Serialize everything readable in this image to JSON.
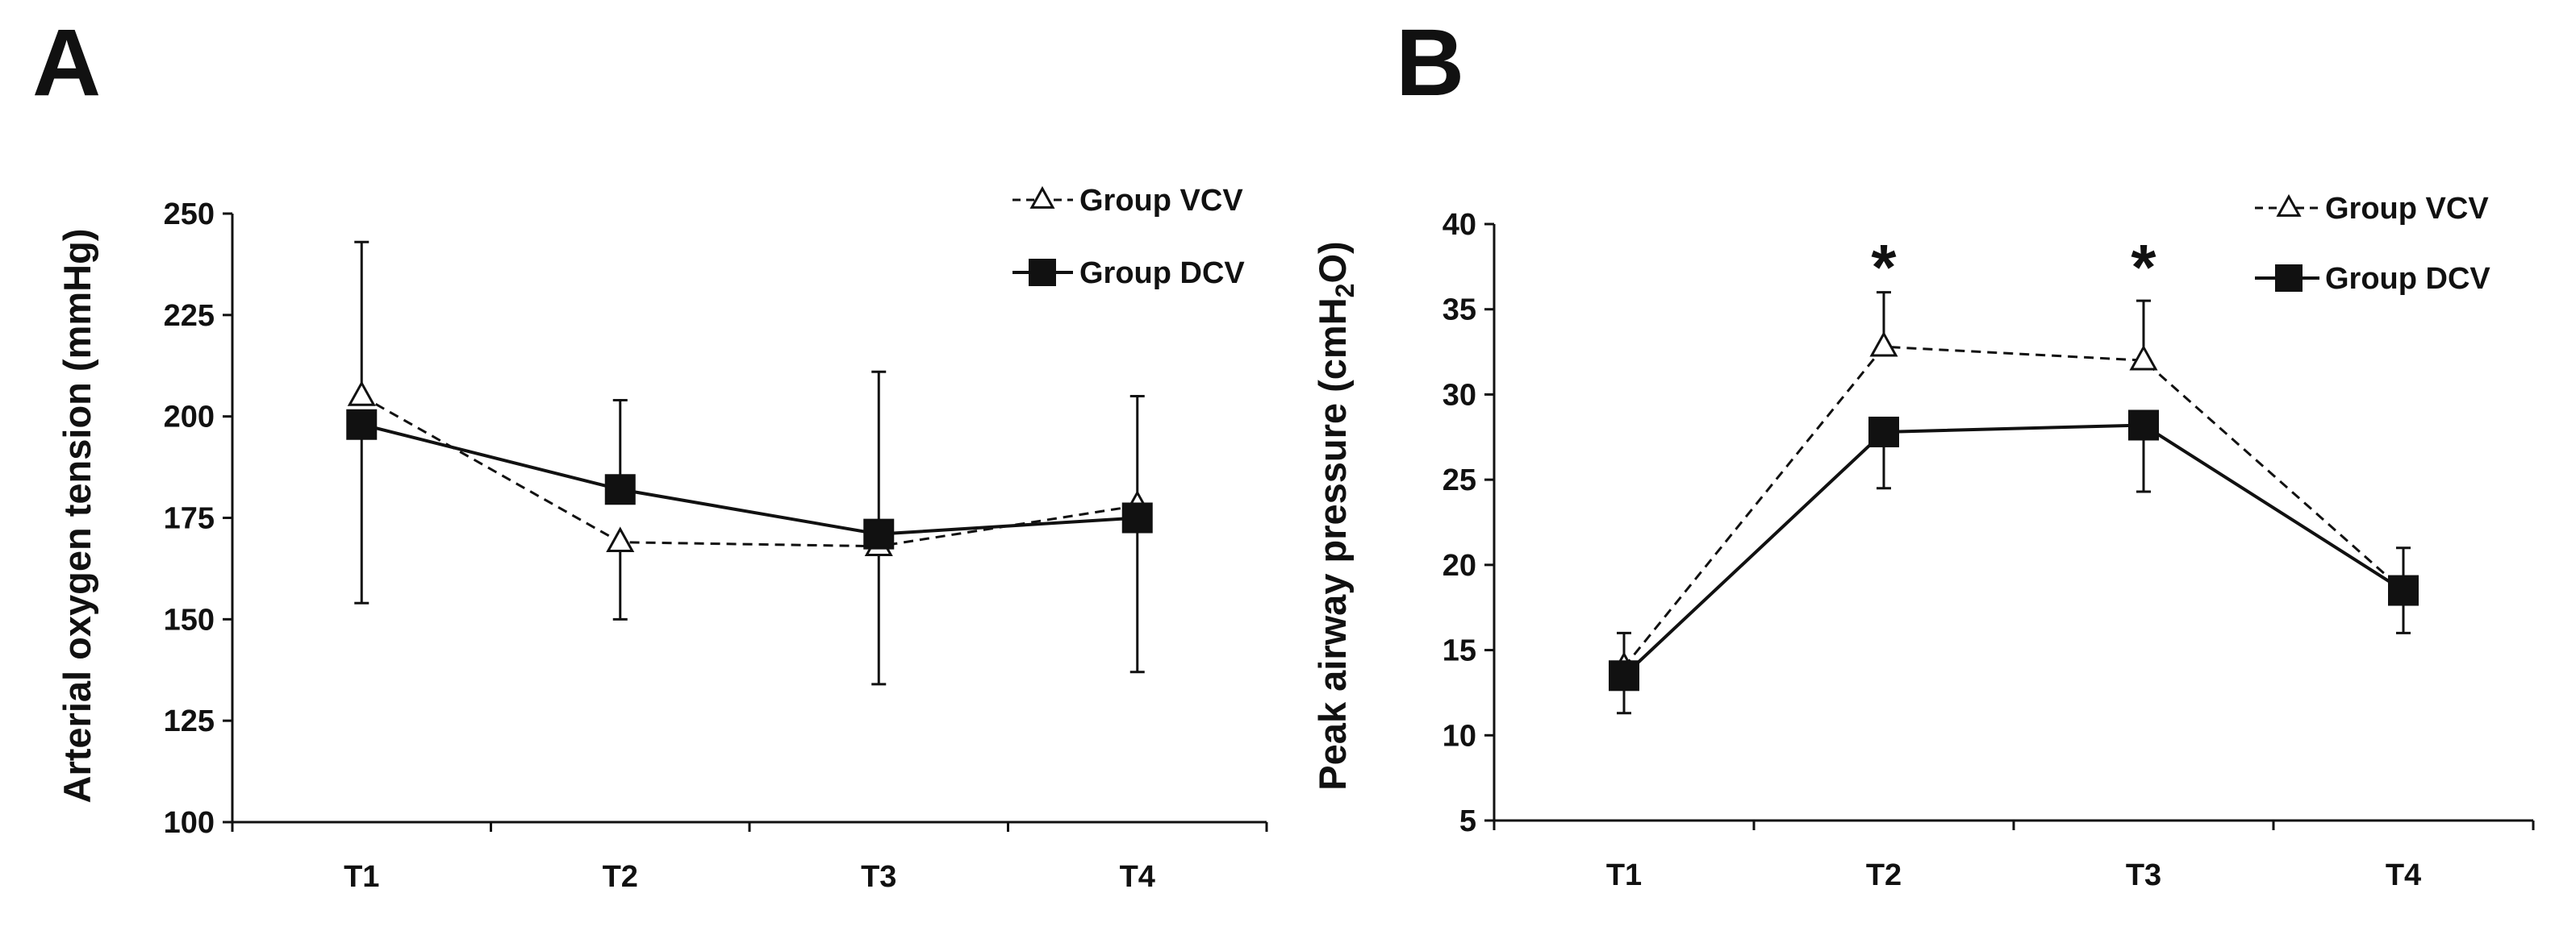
{
  "chart_data": [
    {
      "type": "line",
      "panel_label": "A",
      "title": "",
      "categories": [
        "T1",
        "T2",
        "T3",
        "T4"
      ],
      "xlabel": "",
      "ylabel": "Arterial oxygen tension (mmHg)",
      "ylim": [
        100,
        250
      ],
      "yticks": [
        100,
        125,
        150,
        175,
        200,
        225,
        250
      ],
      "grid": false,
      "legend_position": "top-right",
      "series": [
        {
          "name": "Group VCV",
          "legend_label": "Group VCV",
          "style": "dashed",
          "marker": "open-triangle",
          "color": "#111111",
          "values": [
            205,
            169,
            168,
            178
          ],
          "error_upper": [
            243,
            null,
            null,
            null
          ],
          "error_lower": [
            null,
            150,
            null,
            null
          ]
        },
        {
          "name": "Group DCV",
          "legend_label": "Group DCV",
          "style": "solid",
          "marker": "filled-square",
          "color": "#111111",
          "values": [
            198,
            182,
            171,
            175
          ],
          "error_upper": [
            null,
            204,
            211,
            205
          ],
          "error_lower": [
            154,
            null,
            134,
            137
          ]
        }
      ],
      "annotations": []
    },
    {
      "type": "line",
      "panel_label": "B",
      "title": "",
      "categories": [
        "T1",
        "T2",
        "T3",
        "T4"
      ],
      "xlabel": "",
      "ylabel": "Peak airway pressure (cmH2O)",
      "ylabel_parts": {
        "main": "Peak airway pressure (cmH",
        "sub": "2",
        "tail": "O)"
      },
      "ylim": [
        5,
        40
      ],
      "yticks": [
        5,
        10,
        15,
        20,
        25,
        30,
        35,
        40
      ],
      "grid": false,
      "legend_position": "top-right",
      "series": [
        {
          "name": "Group VCV",
          "legend_label": "Group VCV",
          "style": "dashed",
          "marker": "open-triangle",
          "color": "#111111",
          "values": [
            14,
            32.8,
            32,
            18.5
          ],
          "error_upper": [
            16,
            36,
            35.5,
            21
          ],
          "error_lower": [
            null,
            null,
            null,
            null
          ]
        },
        {
          "name": "Group DCV",
          "legend_label": "Group DCV",
          "style": "solid",
          "marker": "filled-square",
          "color": "#111111",
          "values": [
            13.5,
            27.8,
            28.2,
            18.5
          ],
          "error_upper": [
            null,
            null,
            null,
            null
          ],
          "error_lower": [
            11.3,
            24.5,
            24.3,
            16
          ]
        }
      ],
      "annotations": [
        {
          "text": "*",
          "category": "T2",
          "value": 37.5
        },
        {
          "text": "*",
          "category": "T3",
          "value": 37.5
        }
      ]
    }
  ]
}
